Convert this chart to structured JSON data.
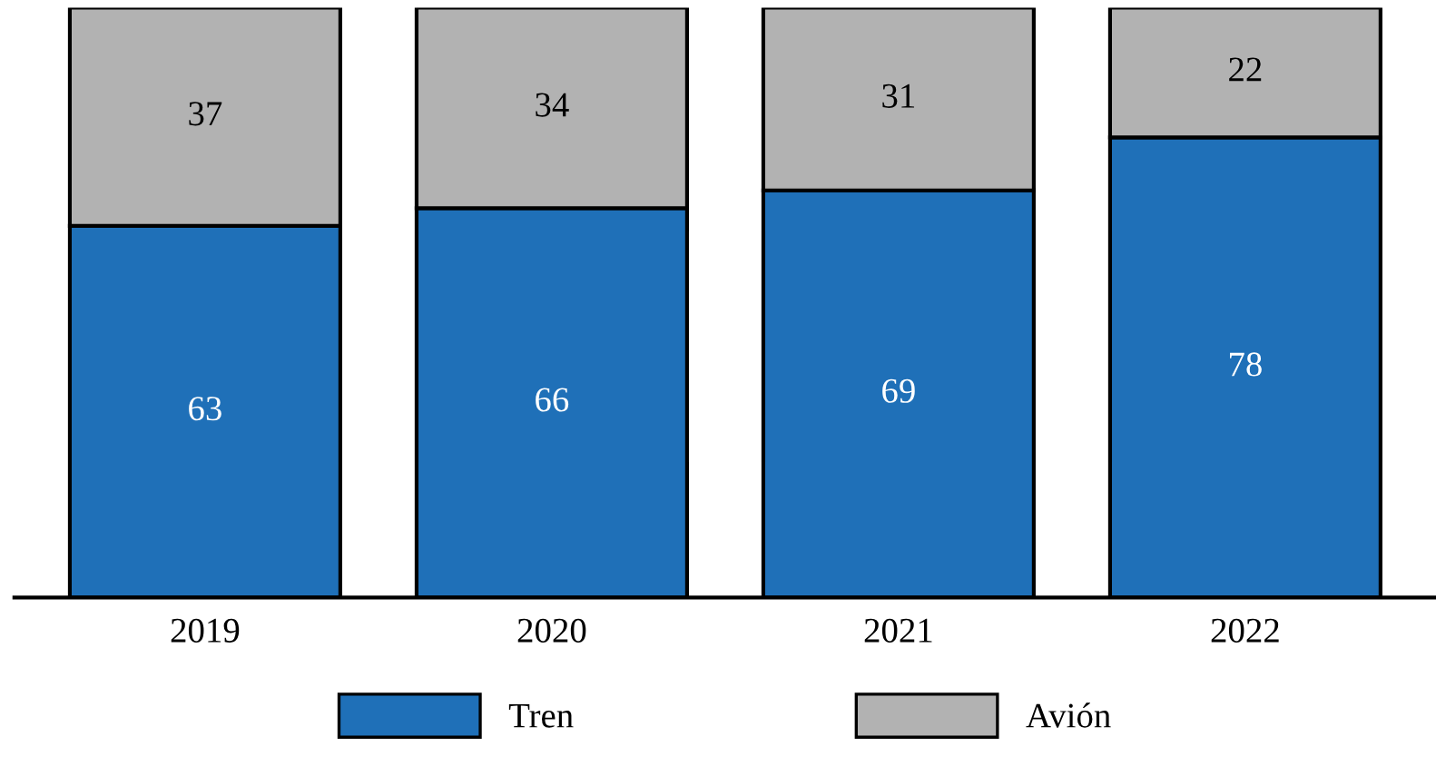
{
  "chart_data": {
    "type": "bar",
    "stacked": true,
    "categories": [
      "2019",
      "2020",
      "2021",
      "2022"
    ],
    "series": [
      {
        "name": "Tren",
        "color": "#1f70b8",
        "values": [
          63,
          66,
          69,
          78
        ]
      },
      {
        "name": "Avión",
        "color": "#b2b2b2",
        "values": [
          37,
          34,
          31,
          22
        ]
      }
    ],
    "data_labels": true,
    "legend": "bottom",
    "grid": false
  }
}
